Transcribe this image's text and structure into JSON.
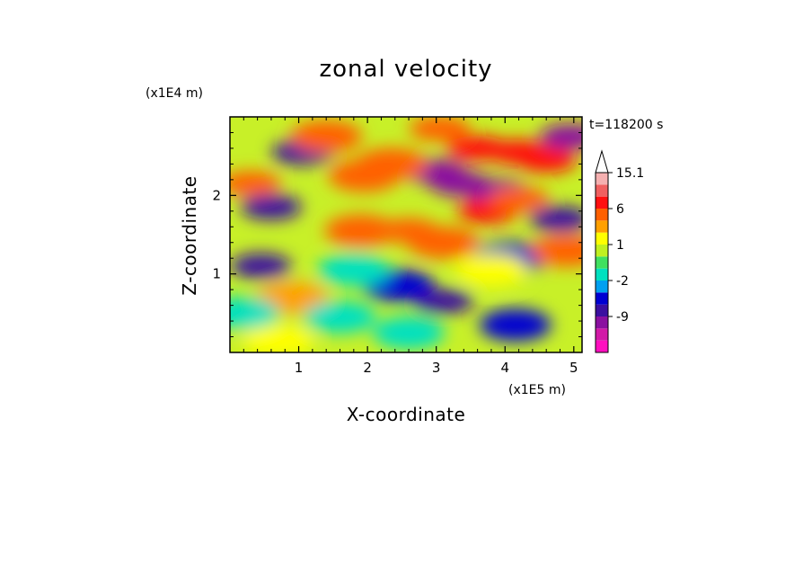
{
  "chart_data": {
    "type": "heatmap",
    "title": "zonal velocity",
    "xlabel": "X-coordinate",
    "ylabel": "Z-coordinate",
    "x_scale_label": "(x1E5 m)",
    "y_scale_label": "(x1E4 m)",
    "time_label": "t=118200 s",
    "xlim": [
      0,
      5.12
    ],
    "ylim": [
      0,
      3.0
    ],
    "x_ticks": [
      1,
      2,
      3,
      4,
      5
    ],
    "x_tick_labels": [
      "1",
      "2",
      "3",
      "4",
      "5"
    ],
    "y_ticks": [
      1,
      2
    ],
    "y_tick_labels": [
      "1",
      "2"
    ],
    "colorbar": {
      "levels": [
        -15,
        -12,
        -9,
        -6,
        -3,
        -2,
        -1,
        0,
        1,
        2,
        3,
        6,
        9,
        12,
        15.1
      ],
      "colors": [
        "#ff0fbf",
        "#d21aa7",
        "#8a10a0",
        "#3b10a0",
        "#0000d2",
        "#00a0f0",
        "#00e0c0",
        "#40e060",
        "#c0f020",
        "#ffff00",
        "#ffa000",
        "#ff6000",
        "#ff1010",
        "#f06060",
        "#f5b0b0"
      ],
      "tick_labels": [
        {
          "value": 15.1,
          "label": "15.1"
        },
        {
          "value": 6,
          "label": "6"
        },
        {
          "value": 1,
          "label": "1"
        },
        {
          "value": -2,
          "label": "-2"
        },
        {
          "value": -9,
          "label": "-9"
        }
      ],
      "extends_max": true
    },
    "field_features": [
      {
        "x": 1.05,
        "z": 2.55,
        "u": -8
      },
      {
        "x": 0.6,
        "z": 1.85,
        "u": -7
      },
      {
        "x": 0.45,
        "z": 1.1,
        "u": -6
      },
      {
        "x": 3.0,
        "z": 2.3,
        "u": -10
      },
      {
        "x": 3.35,
        "z": 2.15,
        "u": -9
      },
      {
        "x": 3.9,
        "z": 2.05,
        "u": -10
      },
      {
        "x": 4.95,
        "z": 2.75,
        "u": -10
      },
      {
        "x": 4.8,
        "z": 1.7,
        "u": -8
      },
      {
        "x": 3.1,
        "z": 0.65,
        "u": -7
      },
      {
        "x": 2.45,
        "z": 0.85,
        "u": -5
      },
      {
        "x": 4.15,
        "z": 0.35,
        "u": -5
      },
      {
        "x": 4.05,
        "z": 1.2,
        "u": -3
      },
      {
        "x": 3.05,
        "z": 2.85,
        "u": 6
      },
      {
        "x": 3.6,
        "z": 2.6,
        "u": 9
      },
      {
        "x": 4.2,
        "z": 2.55,
        "u": 8
      },
      {
        "x": 4.6,
        "z": 2.45,
        "u": 7
      },
      {
        "x": 3.75,
        "z": 1.8,
        "u": 7
      },
      {
        "x": 4.2,
        "z": 1.95,
        "u": 6
      },
      {
        "x": 3.1,
        "z": 1.4,
        "u": 5
      },
      {
        "x": 2.6,
        "z": 1.55,
        "u": 6
      },
      {
        "x": 2.35,
        "z": 2.4,
        "u": 4
      },
      {
        "x": 1.4,
        "z": 2.75,
        "u": 4
      },
      {
        "x": 1.95,
        "z": 2.25,
        "u": 4
      },
      {
        "x": 0.3,
        "z": 2.15,
        "u": 6
      },
      {
        "x": 1.9,
        "z": 1.55,
        "u": 4
      },
      {
        "x": 0.9,
        "z": 0.7,
        "u": 3
      },
      {
        "x": 4.9,
        "z": 1.3,
        "u": 4
      },
      {
        "x": 3.8,
        "z": 1.05,
        "u": 2
      },
      {
        "x": 0.7,
        "z": 0.15,
        "u": 2
      },
      {
        "x": 1.6,
        "z": 0.45,
        "u": -1
      },
      {
        "x": 2.6,
        "z": 0.25,
        "u": -1
      },
      {
        "x": 0.2,
        "z": 0.5,
        "u": -1
      },
      {
        "x": 1.8,
        "z": 1.05,
        "u": -1
      }
    ]
  }
}
